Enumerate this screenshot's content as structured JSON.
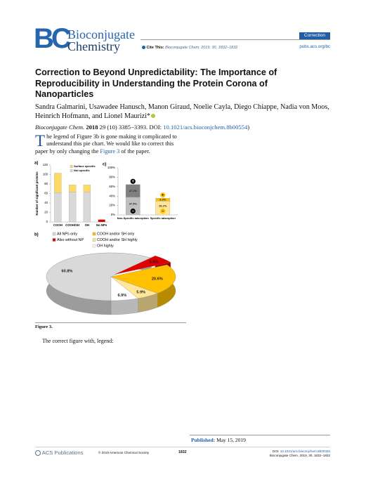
{
  "header": {
    "logo_mark": "BC",
    "journal_line1": "Bioconjugate",
    "journal_line2": "Chemistry",
    "article_type": "Correction",
    "cite_label": "Cite This:",
    "cite": "Bioconjugate Chem. 2019, 30, 1832−1832",
    "url": "pubs.acs.org/bc"
  },
  "article": {
    "title": "Correction to Beyond Unpredictability: The Importance of Reproducibility in Understanding the Protein Corona of Nanoparticles",
    "authors": "Sandra Galmarini, Usawadee Hanusch, Manon Giraud, Noelie Cayla, Diego Chiappe, Nadia von Moos, Heinrich Hofmann, and Lionel Maurizi*",
    "reference": {
      "journal": "Bioconjugate Chem.",
      "year": "2018",
      "details": "29 (10) 3385−3393. DOI:",
      "doi": "10.1021/acs.bioconjchem.8b00554",
      "closing": ")"
    },
    "body": {
      "text": "The legend of Figure 3b is gone making it complicated to understand this pie chart. We would like to correct this paper by only changing the",
      "link": "Figure 3",
      "text_end": "of the paper."
    },
    "figure_caption": "Figure 3.",
    "note": "The correct figure with, legend:"
  },
  "chart_data": [
    {
      "type": "bar",
      "stacked": true,
      "panel": "a)",
      "y_label": "Number of significant proteins",
      "categories": [
        "COOH",
        "COOH/SH",
        "OH",
        "No NPs"
      ],
      "series": [
        {
          "name": "Not specific",
          "color": "#d9d9d9",
          "point_colors": [
            "#d9d9d9",
            "#d9d9d9",
            "#d9d9d9",
            "#e00000"
          ],
          "values": [
            62,
            63,
            63,
            5
          ]
        },
        {
          "name": "Surface specific",
          "color": "#ffd966",
          "values": [
            41,
            15,
            15,
            null
          ]
        }
      ],
      "ylim": [
        0,
        120
      ],
      "yticks": [
        0,
        20,
        40,
        60,
        80,
        100,
        120
      ]
    },
    {
      "type": "bar",
      "stacked": true,
      "panel": "c)",
      "categories": [
        "Non-Specific adsorption",
        "Specific adsorption"
      ],
      "series": [
        {
          "point_colors": [
            "#bfbfbf",
            "#ffe699"
          ],
          "values": [
            37.5,
            29.2
          ],
          "value_labels": [
            "37.5%",
            "29.2%"
          ]
        },
        {
          "point_colors": [
            "#7f7f7f",
            "#ffc000"
          ],
          "values": [
            27.1,
            6.3
          ],
          "value_labels": [
            "27.1%",
            "6.3%"
          ]
        }
      ],
      "signs": [
        "+",
        "−"
      ],
      "sign_colors": [
        "#000000",
        "#ffc000"
      ],
      "ylim": [
        0,
        100
      ],
      "yticks": [
        {
          "value": 0,
          "label": "0%"
        },
        {
          "value": 20,
          "label": "20%"
        },
        {
          "value": 40,
          "label": "40%"
        },
        {
          "value": 60,
          "label": "60%"
        },
        {
          "value": 80,
          "label": "80%"
        },
        {
          "value": 100,
          "label": "100%"
        }
      ]
    },
    {
      "type": "pie",
      "panel": "b)",
      "style": "3d",
      "categories": [
        "All NPs only",
        "Also without NP",
        "COOH and/or SH only",
        "COOH and/or SH highly",
        "OH highly"
      ],
      "values": [
        60.8,
        5.9,
        20.6,
        5.9,
        6.9
      ],
      "value_labels": [
        "60.8%",
        "5.9%",
        "20.6%",
        "5.9%",
        "6.9%"
      ],
      "colors": [
        "#d9d9d9",
        "#e00000",
        "#ffc000",
        "#ffe699",
        "#ffffff"
      ],
      "explode": [
        false,
        true,
        false,
        false,
        false
      ]
    }
  ],
  "footer": {
    "published_label": "Published:",
    "published_date": "May 15, 2019",
    "publisher": "ACS Publications",
    "copyright": "© 2019 American Chemical Society",
    "page": "1832",
    "doi_label": "DOI:",
    "doi": "10.1021/acs.bioconjchem.8b00320",
    "citation": "Bioconjugate Chem. 2019, 30, 1832−1832"
  }
}
